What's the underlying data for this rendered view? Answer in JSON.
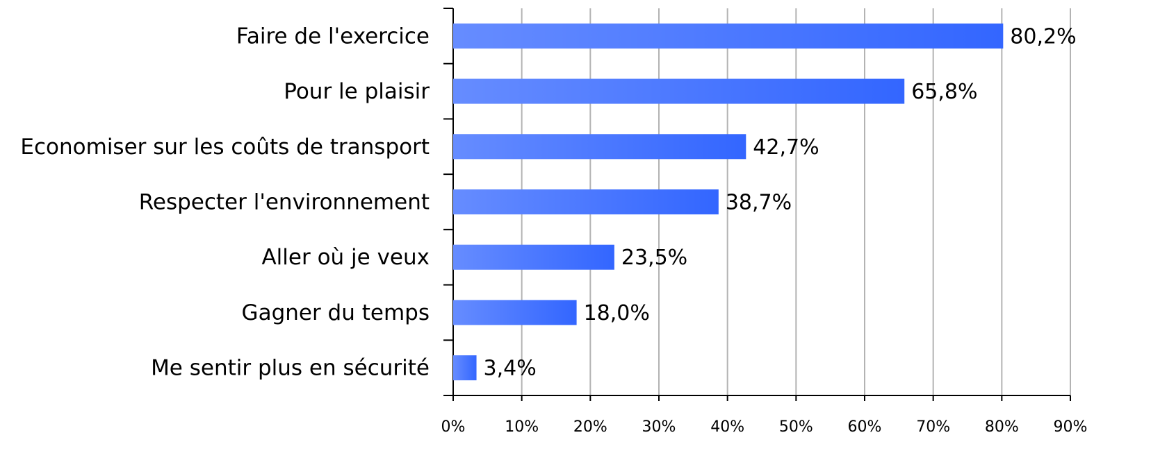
{
  "chart_data": {
    "type": "bar",
    "orientation": "horizontal",
    "categories": [
      "Faire de l'exercice",
      "Pour le plaisir",
      "Economiser sur les coûts de transport",
      "Respecter l'environnement",
      "Aller où je veux",
      "Gagner du temps",
      "Me sentir plus en sécurité"
    ],
    "values": [
      80.2,
      65.8,
      42.7,
      38.7,
      23.5,
      18.0,
      3.4
    ],
    "value_labels": [
      "80,2%",
      "65,8%",
      "42,7%",
      "38,7%",
      "23,5%",
      "18,0%",
      "3,4%"
    ],
    "color": "#3366ff",
    "xlim": [
      0,
      90
    ],
    "xticks": [
      {
        "value": 0,
        "label": "0%"
      },
      {
        "value": 10,
        "label": "10%"
      },
      {
        "value": 20,
        "label": "20%"
      },
      {
        "value": 30,
        "label": "30%"
      },
      {
        "value": 40,
        "label": "40%"
      },
      {
        "value": 50,
        "label": "50%"
      },
      {
        "value": 60,
        "label": "60%"
      },
      {
        "value": 70,
        "label": "70%"
      },
      {
        "value": 80,
        "label": "80%"
      },
      {
        "value": 90,
        "label": "90%"
      }
    ],
    "grid": true
  }
}
